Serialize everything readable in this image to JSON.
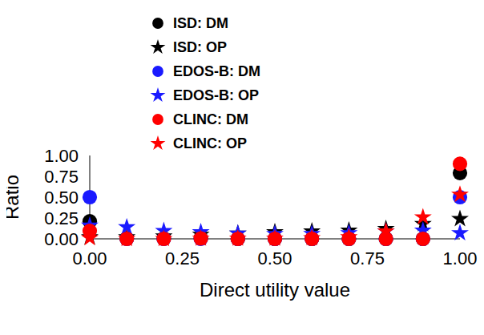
{
  "chart_data": {
    "type": "scatter",
    "x_label": "Direct utility value",
    "y_label": "Ratio",
    "x": [
      0,
      0.1,
      0.2,
      0.3,
      0.4,
      0.5,
      0.6,
      0.7,
      0.8,
      0.9,
      1.0
    ],
    "series": [
      {
        "name": "ISD: DM",
        "color": "#000000",
        "marker": "circle",
        "values": [
          0.21,
          0.005,
          0.005,
          0.01,
          0,
          0,
          0,
          0,
          0,
          0,
          0.79
        ]
      },
      {
        "name": "ISD: OP",
        "color": "#000000",
        "marker": "star",
        "values": [
          0.02,
          0.02,
          0.03,
          0.05,
          0.065,
          0.08,
          0.09,
          0.1,
          0.12,
          0.18,
          0.24
        ]
      },
      {
        "name": "EDOS-B: DM",
        "color": "#1a1aff",
        "marker": "circle",
        "values": [
          0.5,
          0,
          0,
          0,
          0,
          0,
          0,
          0,
          0,
          0,
          0.5
        ]
      },
      {
        "name": "EDOS-B: OP",
        "color": "#1a1aff",
        "marker": "star",
        "values": [
          0.16,
          0.14,
          0.095,
          0.08,
          0.065,
          0.06,
          0.06,
          0.07,
          0.09,
          0.1,
          0.07
        ]
      },
      {
        "name": "CLINC: DM",
        "color": "#ff0000",
        "marker": "circle",
        "values": [
          0.095,
          0,
          0,
          0.005,
          0,
          0,
          0,
          0,
          0,
          0,
          0.9
        ]
      },
      {
        "name": "CLINC: OP",
        "color": "#ff0000",
        "marker": "star",
        "values": [
          0.01,
          0,
          0,
          0.005,
          0.005,
          0.005,
          0.01,
          0.02,
          0.09,
          0.26,
          0.53
        ]
      }
    ],
    "xlim": [
      0,
      1
    ],
    "ylim": [
      0,
      1
    ],
    "xticks": [
      {
        "value": 0,
        "label": "0.00"
      },
      {
        "value": 0.25,
        "label": "0.25"
      },
      {
        "value": 0.5,
        "label": "0.50"
      },
      {
        "value": 0.75,
        "label": "0.75"
      },
      {
        "value": 1,
        "label": "1.00"
      }
    ],
    "yticks": [
      {
        "value": 0,
        "label": "0.00"
      },
      {
        "value": 0.25,
        "label": "0.25"
      },
      {
        "value": 0.5,
        "label": "0.50"
      },
      {
        "value": 0.75,
        "label": "0.75"
      },
      {
        "value": 1,
        "label": "1.00"
      }
    ],
    "grid": false,
    "legend": "upper left"
  }
}
